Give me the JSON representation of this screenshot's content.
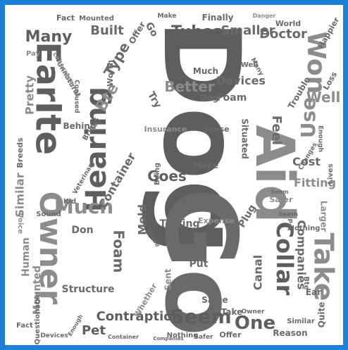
{
  "colors": {
    "border": "#1e7fd6",
    "background": "#ffffff",
    "dark": "#5e5e5e",
    "mid": "#8c8c8c",
    "light": "#b7b7b7"
  },
  "words": {
    "dog": "Dog",
    "aid": "Aid",
    "go": "Go",
    "hearing": "Hearing",
    "ite": "Ite",
    "ear": "Ear",
    "owner": "Owner",
    "collar": "Collar",
    "take": "Take",
    "seem": "Seem",
    "one": "One",
    "better": "Better",
    "devices": "Devices",
    "won": "Won",
    "use": "Use",
    "tubes": "Tubes",
    "smaller": "Smaller",
    "doctor": "Doctor",
    "many": "Many",
    "built": "Built",
    "type": "Type",
    "bte": "Bte",
    "much": "Much",
    "container": "Container",
    "foam": "Foam",
    "mold": "Mold",
    "testing": "Testing",
    "goes": "Goes",
    "contraption": "Contraption",
    "pet": "Pet",
    "companies": "Companies",
    "canal": "Canal",
    "feel": "Feel",
    "well": "Well",
    "fitting": "Fitting",
    "cost": "Cost",
    "plug": "Plug",
    "pretty": "Pretty",
    "similar": "Similar",
    "behind": "Behind",
    "human": "Human",
    "mounted": "Mounted",
    "structure": "Structure",
    "situated": "Situated",
    "insurance": "Insurance",
    "sense": "Sense",
    "make": "Make",
    "being": "Being",
    "expense": "Expense",
    "put": "Put",
    "don": "Don",
    "sent": "Sent",
    "whether": "Whether",
    "same": "Same",
    "offer": "Offer",
    "reason": "Reason",
    "quite": "Quite",
    "nothing": "Nothing",
    "safer": "Safer",
    "larger": "Larger",
    "finally": "Finally",
    "fact": "Fact",
    "pay": "Pay",
    "worth": "Worth",
    "brings": "Brings",
    "unnatural": "Unnatural",
    "questionable": "Questionable",
    "laboratory": "Laboratory",
    "confused": "Confused",
    "veterinary": "Veterinary",
    "breeds": "Breeds",
    "voice": "Voice",
    "sound": "Sound",
    "trouble": "Trouble",
    "lives": "Lives",
    "loss": "Loss",
    "happier": "Happier",
    "world": "World",
    "danger": "Danger",
    "enough": "Enough",
    "changes": "Changes",
    "kid": "Kid",
    "try": "Try",
    "guess": "Guess",
    "goes_to": "Goes"
  }
}
